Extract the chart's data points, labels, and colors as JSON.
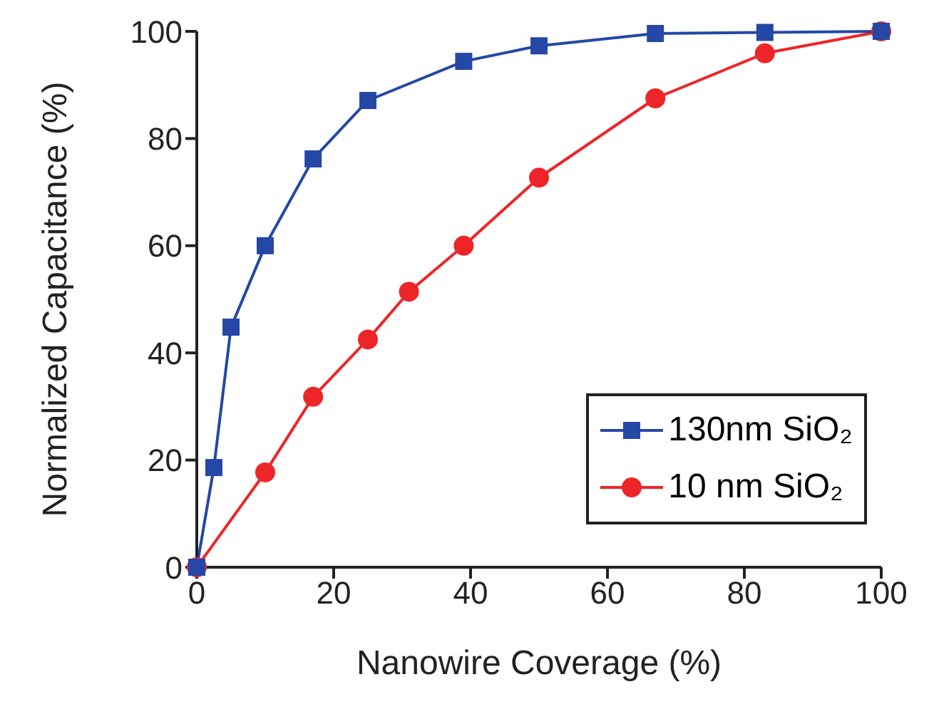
{
  "chart_data": {
    "type": "line",
    "xlabel": "Nanowire Coverage (%)",
    "ylabel": "Normalized Capacitance (%)",
    "xlim": [
      0,
      100
    ],
    "xticks": [
      0,
      20,
      40,
      60,
      80,
      100
    ],
    "ylim": [
      0,
      100
    ],
    "yticks": [
      0,
      20,
      40,
      60,
      80,
      100
    ],
    "grid": false,
    "legend": "bottom right",
    "line_style": "solid",
    "series": [
      {
        "name": "130nm SiO₂",
        "color": "#2547a6",
        "marker": "square",
        "x": [
          0,
          2.5,
          5,
          10,
          17,
          25,
          39,
          50,
          67,
          83,
          100
        ],
        "values": [
          0,
          18.6,
          44.8,
          60,
          76.2,
          87.1,
          94.4,
          97.3,
          99.6,
          99.8,
          100
        ]
      },
      {
        "name": "10 nm SiO₂",
        "color": "#ee2528",
        "marker": "circle",
        "x": [
          0,
          10,
          17,
          25,
          31,
          39,
          50,
          67,
          83,
          100
        ],
        "values": [
          0,
          17.7,
          31.8,
          42.5,
          51.4,
          60,
          72.7,
          87.5,
          95.9,
          100
        ]
      }
    ]
  }
}
